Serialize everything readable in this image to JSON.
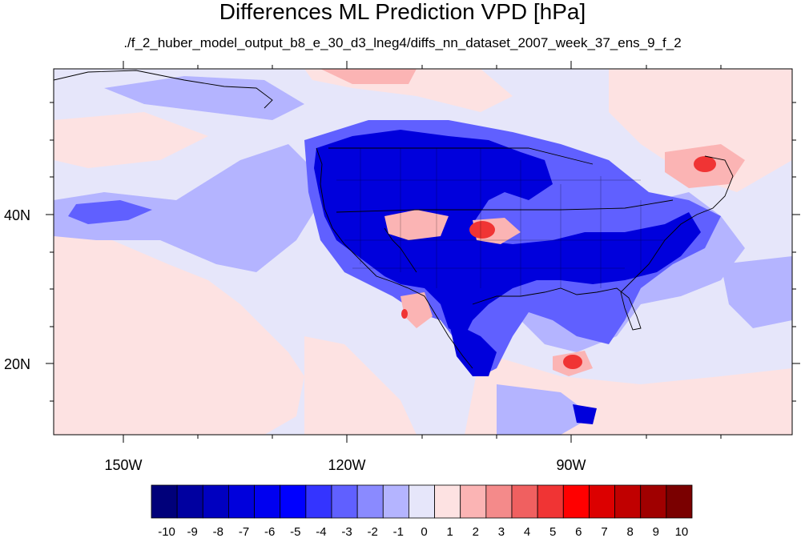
{
  "title": "Differences ML Prediction VPD [hPa]",
  "subtitle": "./f_2_huber_model_output_b8_e_30_d3_lneg4/diffs_nn_dataset_2007_week_37_ens_9_f_2",
  "axes": {
    "x_ticks": [
      "150W",
      "120W",
      "90W"
    ],
    "y_ticks": [
      "40N",
      "20N"
    ]
  },
  "colorbar": {
    "labels": [
      "-10",
      "-9",
      "-8",
      "-7",
      "-6",
      "-5",
      "-4",
      "-3",
      "-2",
      "-1",
      "0",
      "1",
      "2",
      "3",
      "4",
      "5",
      "6",
      "7",
      "8",
      "9",
      "10"
    ],
    "colors": [
      "#00007a",
      "#0000a0",
      "#0000c0",
      "#0000dc",
      "#0000f0",
      "#0000ff",
      "#3434ff",
      "#6060ff",
      "#8a8aff",
      "#b4b4ff",
      "#e6e6fa",
      "#fde2e2",
      "#fbb4b4",
      "#f48a8a",
      "#f06060",
      "#f03434",
      "#ff0000",
      "#dc0000",
      "#c00000",
      "#a00000",
      "#7a0000"
    ]
  },
  "regions": {
    "background": "#e6e6fa",
    "strong_negative": "#0000dc",
    "mid_negative": "#6060ff",
    "light_negative": "#b4b4ff",
    "light_positive": "#fde2e2",
    "mid_positive": "#fbb4b4",
    "strong_positive": "#f03434",
    "peak_positive": "#ff0000"
  }
}
